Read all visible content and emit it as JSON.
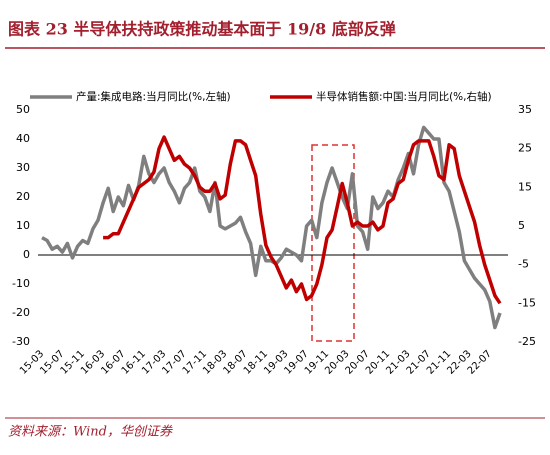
{
  "chart_data": {
    "type": "line",
    "title": "图表 23  半导体扶持政策推动基本面于 19/8 底部反弹",
    "source": "资料来源：Wind，华创证券",
    "categories": [
      "15-03",
      null,
      null,
      null,
      "15-07",
      null,
      null,
      null,
      "15-11",
      null,
      null,
      null,
      "16-03",
      null,
      null,
      null,
      "16-07",
      null,
      null,
      null,
      "16-11",
      null,
      null,
      null,
      "17-03",
      null,
      null,
      null,
      "17-07",
      null,
      null,
      null,
      "17-11",
      null,
      null,
      null,
      "18-03",
      null,
      null,
      null,
      "18-07",
      null,
      null,
      null,
      "18-11",
      null,
      null,
      null,
      "19-03",
      null,
      null,
      null,
      "19-07",
      null,
      null,
      null,
      "19-11",
      null,
      null,
      null,
      "20-03",
      null,
      null,
      null,
      "20-07",
      null,
      null,
      null,
      "20-11",
      null,
      null,
      null,
      "21-03",
      null,
      null,
      null,
      "21-07",
      null,
      null,
      null,
      "21-11",
      null,
      null,
      null,
      "22-03",
      null,
      null,
      null,
      "22-07",
      null,
      null
    ],
    "series": [
      {
        "name": "产量:集成电路:当月同比(%,左轴)",
        "color": "#7f7f7f",
        "axis": "y",
        "values": [
          6,
          5,
          2,
          3,
          1,
          4,
          -1,
          3,
          5,
          4,
          9,
          12,
          18,
          23,
          15,
          20,
          17,
          24,
          19,
          24,
          34,
          28,
          25,
          28,
          30,
          25,
          22,
          18,
          23,
          25,
          30,
          22,
          20,
          15,
          25,
          10,
          9,
          10,
          11,
          13,
          8,
          4,
          -7,
          3,
          -2,
          -2,
          -3,
          -1,
          2,
          1,
          0,
          -2,
          10,
          12,
          6,
          18,
          25,
          30,
          25,
          20,
          16,
          28,
          10,
          8,
          2,
          20,
          16,
          18,
          22,
          20,
          26,
          30,
          35,
          28,
          38,
          44,
          42,
          40,
          40,
          25,
          22,
          15,
          8,
          -2,
          -5,
          -8,
          -10,
          -12,
          -16,
          -25,
          -20
        ]
      },
      {
        "name": "半导体销售额:中国:当月同比(%,右轴)",
        "color": "#c00000",
        "axis": "y2",
        "values": [
          null,
          null,
          null,
          null,
          null,
          null,
          null,
          null,
          null,
          null,
          null,
          null,
          2,
          2,
          3,
          3,
          6,
          9,
          12,
          15,
          16,
          17,
          19,
          25,
          28,
          25,
          22,
          23,
          21,
          20,
          18,
          15,
          14,
          14,
          16,
          12,
          13,
          21,
          27,
          27,
          26,
          22,
          18,
          8,
          0,
          -3,
          -5,
          -8,
          -11,
          -9,
          -12,
          -10,
          -14,
          -13,
          -10,
          -5,
          2,
          4,
          10,
          16,
          11,
          5,
          6,
          5,
          5,
          6,
          4,
          5,
          11,
          12,
          16,
          17,
          22,
          26,
          27,
          27,
          27,
          23,
          18,
          17,
          26,
          25,
          18,
          14,
          10,
          6,
          0,
          -5,
          -9,
          -13,
          -15
        ]
      }
    ],
    "ylim": [
      -30,
      50
    ],
    "yticks": [
      -30,
      -20,
      -10,
      0,
      10,
      20,
      30,
      40,
      50
    ],
    "y2lim": [
      -25,
      35
    ],
    "y2ticks": [
      -25,
      -15,
      -5,
      5,
      15,
      25,
      35
    ],
    "legend": "top"
  }
}
